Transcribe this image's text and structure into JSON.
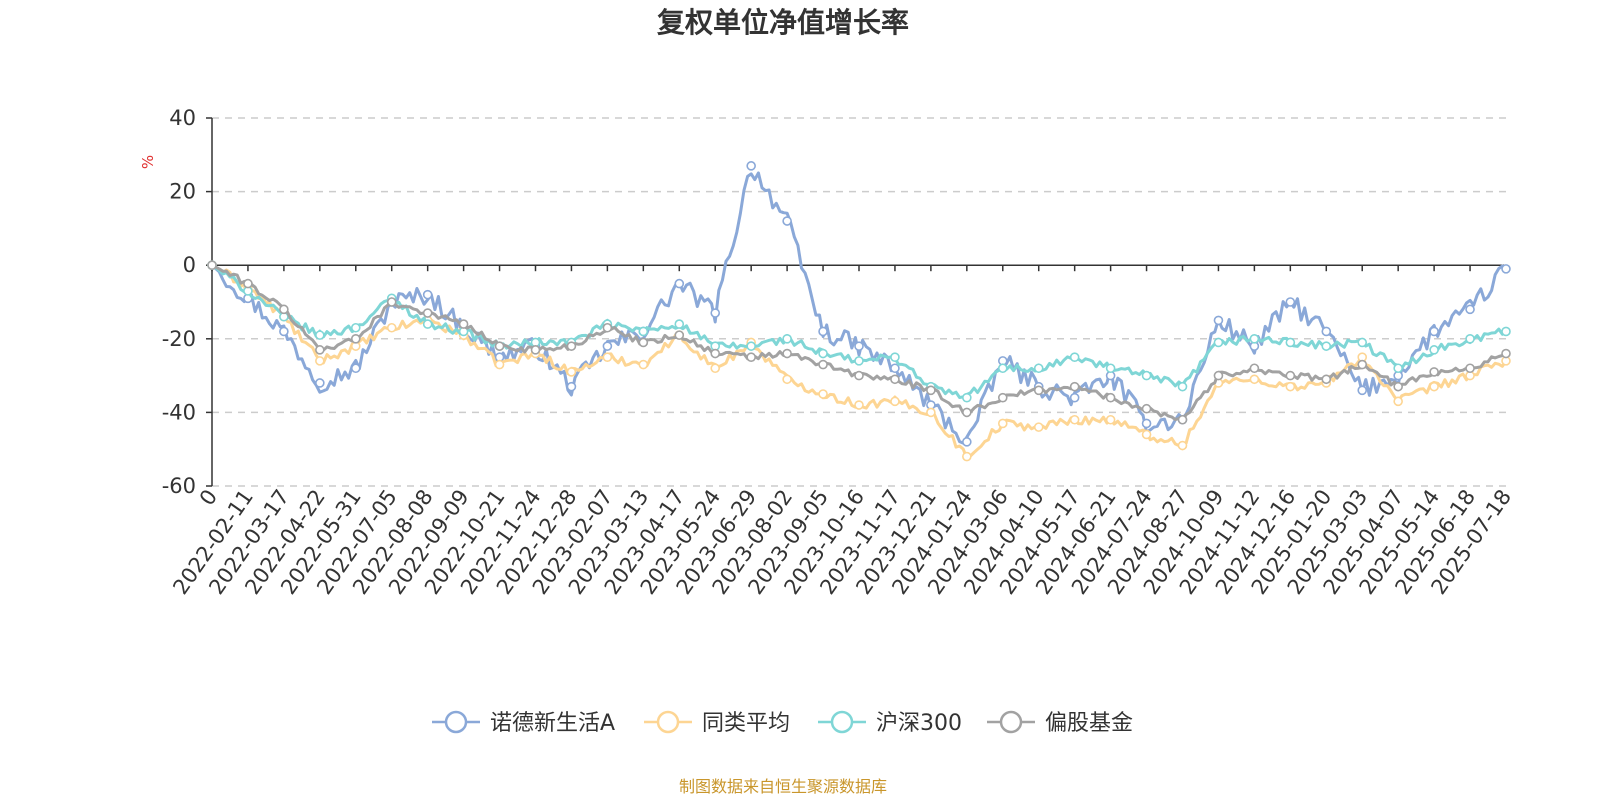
{
  "chart_data": {
    "type": "line",
    "title": "复权单位净值增长率",
    "ylabel": "%",
    "ylim": [
      -60,
      40
    ],
    "yticks": [
      40,
      20,
      0,
      -20,
      -40,
      -60
    ],
    "grid": "horizontal dashed",
    "legend_position": "bottom-center",
    "x_tick_labels": [
      "0",
      "2022-02-11",
      "2022-03-17",
      "2022-04-22",
      "2022-05-31",
      "2022-07-05",
      "2022-08-08",
      "2022-09-09",
      "2022-10-21",
      "2022-11-24",
      "2022-12-28",
      "2023-02-07",
      "2023-03-13",
      "2023-04-17",
      "2023-05-24",
      "2023-06-29",
      "2023-08-02",
      "2023-09-05",
      "2023-10-16",
      "2023-11-17",
      "2023-12-21",
      "2024-01-24",
      "2024-03-06",
      "2024-04-10",
      "2024-05-17",
      "2024-06-21",
      "2024-07-24",
      "2024-08-27",
      "2024-10-09",
      "2024-11-12",
      "2024-12-16",
      "2025-01-20",
      "2025-03-03",
      "2025-04-07",
      "2025-05-14",
      "2025-06-18",
      "2025-07-18"
    ],
    "series": [
      {
        "name": "诺德新生活A",
        "color": "#8aa8d8",
        "values": [
          0,
          -9,
          -18,
          -32,
          -28,
          -10,
          -8,
          -17,
          -25,
          -22,
          -33,
          -22,
          -18,
          -5,
          -13,
          27,
          12,
          -18,
          -22,
          -28,
          -38,
          -48,
          -26,
          -33,
          -36,
          -30,
          -43,
          -42,
          -15,
          -22,
          -10,
          -18,
          -34,
          -30,
          -18,
          -12,
          -1
        ]
      },
      {
        "name": "同类平均",
        "color": "#fdd593",
        "values": [
          0,
          -6,
          -14,
          -26,
          -22,
          -17,
          -15,
          -19,
          -27,
          -24,
          -29,
          -25,
          -27,
          -19,
          -28,
          -21,
          -31,
          -35,
          -38,
          -37,
          -40,
          -52,
          -43,
          -44,
          -42,
          -42,
          -46,
          -49,
          -32,
          -31,
          -33,
          -32,
          -25,
          -37,
          -33,
          -30,
          -26
        ]
      },
      {
        "name": "沪深300",
        "color": "#7fd6d6",
        "values": [
          0,
          -7,
          -14,
          -19,
          -17,
          -9,
          -16,
          -18,
          -22,
          -21,
          -21,
          -16,
          -18,
          -16,
          -22,
          -22,
          -20,
          -24,
          -26,
          -25,
          -33,
          -36,
          -28,
          -28,
          -25,
          -28,
          -30,
          -33,
          -21,
          -20,
          -21,
          -22,
          -21,
          -28,
          -23,
          -20,
          -18
        ]
      },
      {
        "name": "偏股基金",
        "color": "#a2a2a2",
        "values": [
          0,
          -5,
          -12,
          -23,
          -20,
          -10,
          -13,
          -16,
          -22,
          -23,
          -22,
          -17,
          -21,
          -19,
          -24,
          -25,
          -24,
          -27,
          -30,
          -31,
          -34,
          -40,
          -36,
          -34,
          -33,
          -36,
          -39,
          -42,
          -30,
          -28,
          -30,
          -31,
          -27,
          -33,
          -29,
          -28,
          -24
        ]
      }
    ]
  },
  "source_note": "制图数据来自恒生聚源数据库",
  "source_color": "#c9962b",
  "unit_color": "#e03030"
}
